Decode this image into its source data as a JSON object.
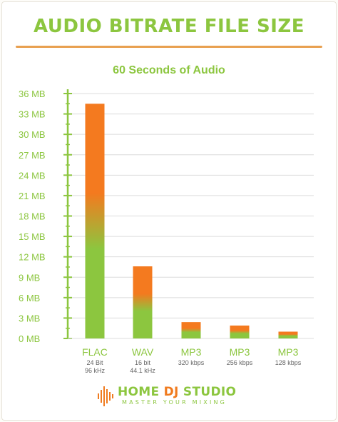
{
  "chart_data": {
    "type": "bar",
    "title": "AUDIO BITRATE FILE SIZE",
    "subtitle": "60 Seconds of Audio",
    "categories": [
      "FLAC",
      "WAV",
      "MP3",
      "MP3",
      "MP3"
    ],
    "category_details": [
      [
        "24 Bit",
        "96 kHz"
      ],
      [
        "16 bit",
        "44.1 kHz"
      ],
      [
        "320 kbps"
      ],
      [
        "256 kbps"
      ],
      [
        "128 kbps"
      ]
    ],
    "values": [
      34.5,
      10.6,
      2.4,
      1.9,
      1.0
    ],
    "ylim": [
      0,
      36
    ],
    "yticks": [
      0,
      3,
      6,
      9,
      12,
      15,
      18,
      21,
      24,
      27,
      30,
      33,
      36
    ],
    "ytick_labels": [
      "0 MB",
      "3 MB",
      "6 MB",
      "9 MB",
      "12 MB",
      "15 MB",
      "18 MB",
      "21 MB",
      "24 MB",
      "27 MB",
      "30 MB",
      "33 MB",
      "36 MB"
    ],
    "grid": true,
    "colors": {
      "bar_top": "#f47a1f",
      "bar_bottom": "#8cc63f",
      "axis": "#8cc63f",
      "grid": "#dcdcdc"
    }
  },
  "branding": {
    "name_part1": "HOME ",
    "name_part2": "DJ",
    "name_part3": " STUDIO",
    "tagline": "MASTER YOUR MIXING",
    "logo_icon": "waveform-icon"
  }
}
